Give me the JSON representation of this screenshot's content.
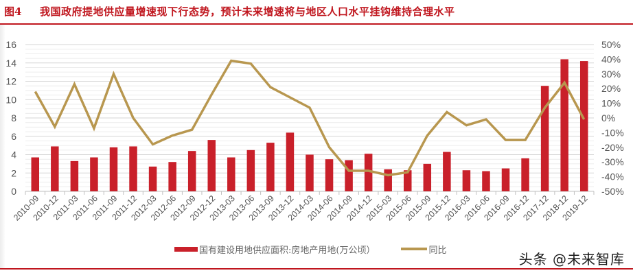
{
  "header": {
    "figure_label": "图4",
    "title": "我国政府提地供应量增速现下行态势，预计未来增速将与地区人口水平挂钩维持合理水平"
  },
  "legend": {
    "bar_label": "国有建设用地供应面积:房地产用地(万公顷）",
    "line_label": "同比"
  },
  "watermark": "头条 @未来智库",
  "colors": {
    "bar": "#c9202a",
    "line": "#b8974f",
    "title": "#c0161e",
    "grid": "#d9d9d9",
    "tick_text": "#555555"
  },
  "chart_data": {
    "type": "bar+line",
    "title": "我国政府提地供应量增速现下行态势，预计未来增速将与地区人口水平挂钩维持合理水平",
    "categories": [
      "2010-09",
      "2010-12",
      "2011-03",
      "2011-06",
      "2011-09",
      "2011-12",
      "2012-03",
      "2012-06",
      "2012-09",
      "2012-12",
      "2013-03",
      "2013-06",
      "2013-09",
      "2013-12",
      "2014-03",
      "2014-06",
      "2014-09",
      "2014-12",
      "2015-03",
      "2015-06",
      "2015-09",
      "2015-12",
      "2016-03",
      "2016-06",
      "2016-09",
      "2016-12",
      "2017-12",
      "2018-12",
      "2019-12"
    ],
    "series": [
      {
        "name": "国有建设用地供应面积:房地产用地(万公顷）",
        "type": "bar",
        "axis": "left",
        "values": [
          3.7,
          4.9,
          3.3,
          3.7,
          4.8,
          4.9,
          2.7,
          3.2,
          4.4,
          5.6,
          3.7,
          4.5,
          5.3,
          6.4,
          4.0,
          3.5,
          3.4,
          4.1,
          2.4,
          2.3,
          3.0,
          4.3,
          2.3,
          2.2,
          2.5,
          3.6,
          11.5,
          14.4,
          14.2
        ]
      },
      {
        "name": "同比",
        "type": "line",
        "axis": "right",
        "unit": "%",
        "values": [
          18,
          -6,
          23,
          -7,
          30,
          0,
          -18,
          -12,
          -8,
          16,
          39,
          37,
          21,
          14,
          7,
          -20,
          -36,
          -36,
          -39,
          -37,
          -12,
          4,
          -5,
          -1,
          -15,
          -15,
          7,
          24,
          -1
        ]
      }
    ],
    "xlabel": "",
    "ylabel_left": "",
    "ylabel_right": "",
    "ylim_left": [
      0,
      16
    ],
    "yticks_left": [
      "0",
      "2",
      "4",
      "6",
      "8",
      "10",
      "12",
      "14",
      "16"
    ],
    "ylim_right": [
      -50,
      50
    ],
    "yticks_right": [
      "-50%",
      "-40%",
      "-30%",
      "-20%",
      "-10%",
      "0%",
      "10%",
      "20%",
      "30%",
      "40%",
      "50%"
    ],
    "grid": true,
    "legend_position": "bottom"
  }
}
